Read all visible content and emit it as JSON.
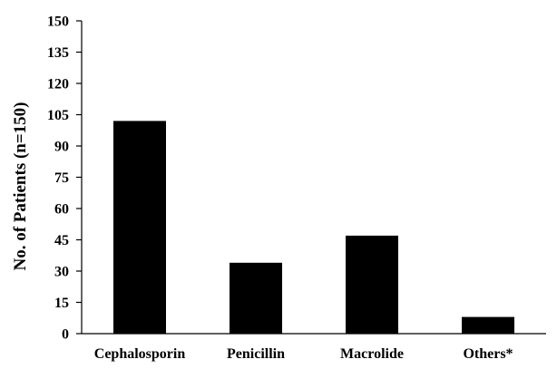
{
  "chart_data": {
    "type": "bar",
    "title": "",
    "xlabel": "",
    "ylabel": "No. of Patients (n=150)",
    "categories": [
      "Cephalosporin",
      "Penicillin",
      "Macrolide",
      "Others*"
    ],
    "values": [
      102,
      34,
      47,
      8
    ],
    "ylim": [
      0,
      150
    ],
    "yticks": [
      0,
      15,
      30,
      45,
      60,
      75,
      90,
      105,
      120,
      135,
      150
    ],
    "grid": false,
    "bar_color": "#000000"
  }
}
